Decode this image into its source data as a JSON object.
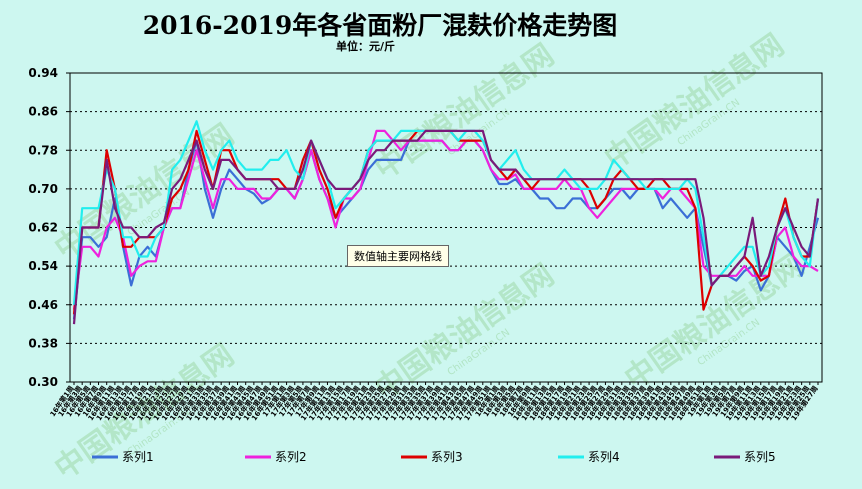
{
  "title": "2016-2019年各省面粉厂混麸价格走势图",
  "unit_label": "单位：元/斤",
  "tooltip": "数值轴主要网格线",
  "watermark": {
    "cn": "中国粮油信息网",
    "en": "ChinaGrain.CN"
  },
  "colors": {
    "series1": "#3b6fd6",
    "series2": "#ee22dd",
    "series3": "#dd0000",
    "series4": "#22eeee",
    "series5": "#7a1a7a",
    "plot_bg": "#cdf7f0",
    "grid": "#000000"
  },
  "chart_data": {
    "type": "line",
    "ylim": [
      0.3,
      0.94
    ],
    "yticks": [
      "0.30",
      "0.38",
      "0.46",
      "0.54",
      "0.62",
      "0.70",
      "0.78",
      "0.86",
      "0.94"
    ],
    "grid": true,
    "legend_position": "bottom",
    "x": [
      "16年第1周",
      "16年第3周",
      "16年第5周",
      "16年第7周",
      "16年第9周",
      "16年第11周",
      "16年第13周",
      "16年第15周",
      "16年第17周",
      "16年第19周",
      "16年第21周",
      "16年第23周",
      "16年第25周",
      "16年第27周",
      "16年第29周",
      "16年第31周",
      "16年第33周",
      "16年第35周",
      "16年第37周",
      "16年第39周",
      "16年第41周",
      "16年第43周",
      "16年第45周",
      "16年第47周",
      "16年第49周",
      "16年第51周",
      "17年第1周",
      "17年第3周",
      "17年第5周",
      "17年第7周",
      "17年第9周",
      "17年第11周",
      "17年第13周",
      "17年第15周",
      "17年第17周",
      "17年第19周",
      "17年第21周",
      "17年第23周",
      "17年第25周",
      "17年第27周",
      "17年第29周",
      "17年第31周",
      "17年第33周",
      "17年第35周",
      "17年第37周",
      "17年第39周",
      "17年第41周",
      "17年第43周",
      "17年第45周",
      "17年第47周",
      "17年第49周",
      "17年第51周",
      "18年第1周",
      "18年第3周",
      "18年第5周",
      "18年第7周",
      "18年第9周",
      "18年第11周",
      "18年第13周",
      "18年第15周",
      "18年第17周",
      "18年第19周",
      "18年第21周",
      "18年第23周",
      "18年第25周",
      "18年第27周",
      "18年第29周",
      "18年第31周",
      "18年第33周",
      "18年第35周",
      "18年第37周",
      "18年第39周",
      "18年第41周",
      "18年第43周",
      "18年第45周",
      "18年第47周",
      "18年第49周",
      "18年第51周",
      "19年第1周",
      "19年第3周",
      "19年第5周",
      "19年第7周",
      "19年第9周",
      "19年第11周",
      "19年第13周",
      "19年第15周",
      "19年第17周",
      "19年第19周",
      "19年第21周",
      "19年第23周",
      "19年第25周",
      "19年第27周"
    ],
    "series": [
      {
        "name": "系列1",
        "values": [
          0.43,
          0.6,
          0.6,
          0.58,
          0.6,
          0.68,
          0.58,
          0.5,
          0.56,
          0.58,
          0.56,
          0.62,
          0.66,
          0.66,
          0.74,
          0.8,
          0.7,
          0.64,
          0.7,
          0.74,
          0.72,
          0.7,
          0.69,
          0.67,
          0.68,
          0.7,
          0.7,
          0.68,
          0.72,
          0.78,
          0.72,
          0.68,
          0.64,
          0.66,
          0.68,
          0.7,
          0.74,
          0.76,
          0.76,
          0.76,
          0.76,
          0.8,
          0.8,
          0.8,
          0.8,
          0.8,
          0.78,
          0.78,
          0.8,
          0.8,
          0.78,
          0.74,
          0.71,
          0.71,
          0.72,
          0.7,
          0.7,
          0.68,
          0.68,
          0.66,
          0.66,
          0.68,
          0.68,
          0.66,
          0.66,
          0.68,
          0.7,
          0.7,
          0.68,
          0.7,
          0.7,
          0.7,
          0.66,
          0.68,
          0.66,
          0.64,
          0.66,
          0.58,
          0.5,
          0.52,
          0.52,
          0.51,
          0.53,
          0.54,
          0.49,
          0.52,
          0.6,
          0.58,
          0.56,
          0.52,
          0.58,
          0.64
        ]
      },
      {
        "name": "系列2",
        "values": [
          0.45,
          0.58,
          0.58,
          0.56,
          0.62,
          0.64,
          0.6,
          0.52,
          0.54,
          0.55,
          0.55,
          0.62,
          0.66,
          0.66,
          0.72,
          0.78,
          0.72,
          0.66,
          0.72,
          0.72,
          0.7,
          0.7,
          0.7,
          0.68,
          0.68,
          0.7,
          0.7,
          0.68,
          0.72,
          0.78,
          0.72,
          0.68,
          0.62,
          0.68,
          0.68,
          0.7,
          0.76,
          0.82,
          0.82,
          0.8,
          0.78,
          0.8,
          0.8,
          0.8,
          0.8,
          0.8,
          0.78,
          0.78,
          0.8,
          0.8,
          0.78,
          0.74,
          0.72,
          0.72,
          0.73,
          0.7,
          0.7,
          0.7,
          0.7,
          0.7,
          0.72,
          0.7,
          0.7,
          0.66,
          0.64,
          0.66,
          0.68,
          0.7,
          0.7,
          0.7,
          0.7,
          0.7,
          0.68,
          0.7,
          0.7,
          0.68,
          0.66,
          0.54,
          0.52,
          0.52,
          0.52,
          0.52,
          0.54,
          0.52,
          0.52,
          0.52,
          0.6,
          0.62,
          0.56,
          0.54,
          0.54,
          0.53
        ]
      },
      {
        "name": "系列3",
        "values": [
          0.44,
          0.62,
          0.62,
          0.62,
          0.78,
          0.7,
          0.58,
          0.58,
          0.6,
          0.6,
          0.6,
          0.62,
          0.68,
          0.7,
          0.74,
          0.82,
          0.76,
          0.7,
          0.78,
          0.78,
          0.74,
          0.72,
          0.72,
          0.72,
          0.72,
          0.72,
          0.7,
          0.7,
          0.76,
          0.8,
          0.74,
          0.7,
          0.64,
          0.68,
          0.7,
          0.72,
          0.78,
          0.8,
          0.8,
          0.8,
          0.8,
          0.8,
          0.82,
          0.82,
          0.82,
          0.82,
          0.82,
          0.8,
          0.8,
          0.8,
          0.8,
          0.76,
          0.74,
          0.72,
          0.74,
          0.72,
          0.7,
          0.72,
          0.72,
          0.72,
          0.72,
          0.72,
          0.72,
          0.7,
          0.66,
          0.68,
          0.72,
          0.74,
          0.72,
          0.7,
          0.7,
          0.72,
          0.72,
          0.7,
          0.7,
          0.7,
          0.66,
          0.45,
          0.5,
          0.52,
          0.52,
          0.54,
          0.56,
          0.54,
          0.51,
          0.52,
          0.62,
          0.68,
          0.6,
          0.56,
          0.56,
          0.68
        ]
      },
      {
        "name": "系列4",
        "values": [
          0.46,
          0.66,
          0.66,
          0.66,
          0.74,
          0.7,
          0.6,
          0.6,
          0.56,
          0.56,
          0.6,
          0.62,
          0.74,
          0.76,
          0.8,
          0.84,
          0.78,
          0.74,
          0.78,
          0.8,
          0.76,
          0.74,
          0.74,
          0.74,
          0.76,
          0.76,
          0.78,
          0.74,
          0.72,
          0.8,
          0.76,
          0.72,
          0.66,
          0.68,
          0.7,
          0.72,
          0.78,
          0.8,
          0.8,
          0.8,
          0.82,
          0.82,
          0.82,
          0.82,
          0.82,
          0.82,
          0.82,
          0.8,
          0.82,
          0.82,
          0.8,
          0.76,
          0.74,
          0.76,
          0.78,
          0.74,
          0.72,
          0.72,
          0.72,
          0.72,
          0.74,
          0.72,
          0.7,
          0.7,
          0.7,
          0.72,
          0.76,
          0.74,
          0.72,
          0.72,
          0.7,
          0.7,
          0.7,
          0.7,
          0.7,
          0.72,
          0.7,
          0.6,
          0.5,
          0.52,
          0.54,
          0.56,
          0.58,
          0.58,
          0.52,
          0.54,
          0.62,
          0.66,
          0.6,
          0.56,
          0.54,
          0.68
        ]
      },
      {
        "name": "系列5",
        "values": [
          0.42,
          0.62,
          0.62,
          0.62,
          0.76,
          0.66,
          0.62,
          0.62,
          0.6,
          0.6,
          0.62,
          0.63,
          0.7,
          0.72,
          0.76,
          0.8,
          0.74,
          0.7,
          0.76,
          0.76,
          0.74,
          0.72,
          0.72,
          0.72,
          0.72,
          0.7,
          0.7,
          0.7,
          0.74,
          0.8,
          0.76,
          0.72,
          0.7,
          0.7,
          0.7,
          0.72,
          0.76,
          0.78,
          0.78,
          0.8,
          0.8,
          0.8,
          0.8,
          0.82,
          0.82,
          0.82,
          0.82,
          0.82,
          0.82,
          0.82,
          0.82,
          0.76,
          0.74,
          0.74,
          0.74,
          0.72,
          0.72,
          0.72,
          0.72,
          0.72,
          0.72,
          0.72,
          0.72,
          0.72,
          0.72,
          0.72,
          0.72,
          0.72,
          0.72,
          0.72,
          0.72,
          0.72,
          0.72,
          0.72,
          0.72,
          0.72,
          0.72,
          0.64,
          0.5,
          0.52,
          0.52,
          0.54,
          0.56,
          0.64,
          0.52,
          0.56,
          0.62,
          0.66,
          0.62,
          0.58,
          0.56,
          0.68
        ]
      }
    ]
  }
}
